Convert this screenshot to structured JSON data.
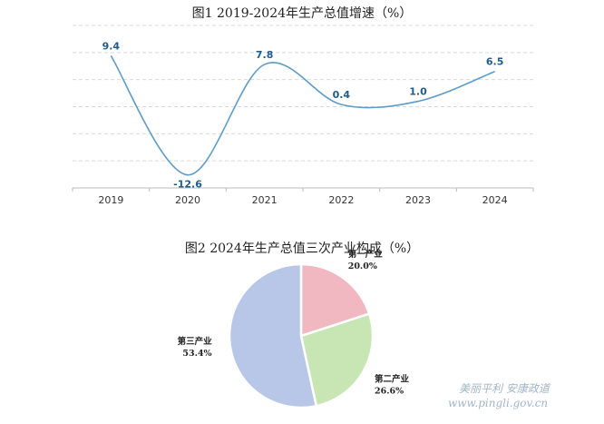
{
  "chart_data": [
    {
      "type": "line",
      "title": "图1  2019-2024年生产总值增速（%）",
      "categories": [
        "2019",
        "2020",
        "2021",
        "2022",
        "2023",
        "2024"
      ],
      "series": [
        {
          "values": [
            9.4,
            -12.6,
            7.8,
            0.4,
            1.0,
            6.5
          ],
          "labels": [
            "9.4",
            "-12.6",
            "7.8",
            "0.4",
            "1.0",
            "6.5"
          ]
        }
      ],
      "ylim": [
        -15,
        15
      ],
      "grid": true,
      "line_color": "#5e9bc6"
    },
    {
      "type": "pie",
      "title": "图2  2024年生产总值三次产业构成（%）",
      "slices": [
        {
          "name": "第一产业",
          "value": 20.0,
          "label": "20.0%",
          "color": "#f2b8c1"
        },
        {
          "name": "第二产业",
          "value": 26.6,
          "label": "26.6%",
          "color": "#c8e6b4"
        },
        {
          "name": "第三产业",
          "value": 53.4,
          "label": "53.4%",
          "color": "#b8c7e8"
        }
      ]
    }
  ],
  "watermark": {
    "line1": "美丽平利 安康政道",
    "line2": "www.pingli.gov.cn"
  }
}
